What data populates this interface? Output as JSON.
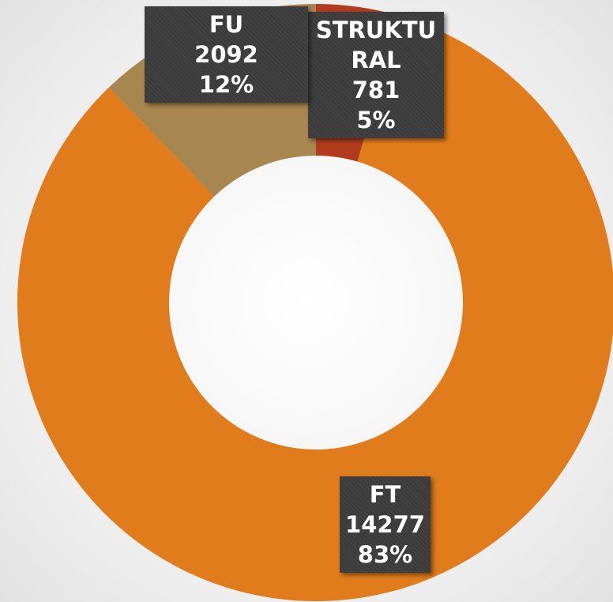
{
  "chart_data": {
    "type": "donut",
    "categories": [
      "STRUKTURAL",
      "FT",
      "FU"
    ],
    "values": [
      781,
      14277,
      2092
    ],
    "percent_labels": [
      "5%",
      "83%",
      "12%"
    ],
    "colors": [
      "#b23a1e",
      "#e07c1b",
      "#a8864f"
    ]
  }
}
